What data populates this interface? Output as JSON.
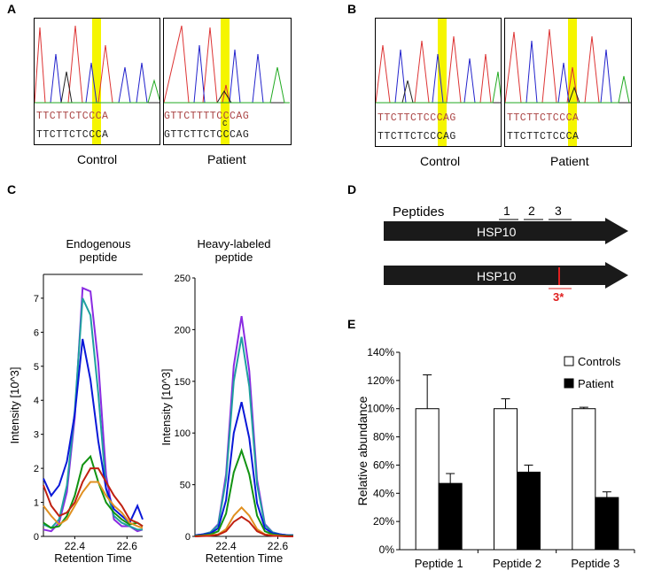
{
  "panels": {
    "A": {
      "letter": "A",
      "left": {
        "caption": "Control",
        "seq_top": "TTCTTCTCCCA",
        "seq_bottom": "TTCTTCTCCCA"
      },
      "right": {
        "caption": "Patient",
        "seq_top": "GTTCTTTTCCCAG",
        "seq_bottom": "GTTCTTCTCCCAG",
        "het_top": "T",
        "het_bottom": "C"
      }
    },
    "B": {
      "letter": "B",
      "left": {
        "caption": "Control",
        "seq_top": "TTCTTCTCCCAG",
        "seq_bottom": "TTCTTCTCCCAG"
      },
      "right": {
        "caption": "Patient",
        "seq_top": "TTCTTCTCCCA",
        "seq_bottom": "TTCTTCTCCCA",
        "het_top": "T"
      }
    },
    "C": {
      "letter": "C",
      "left_title_line1": "Endogenous",
      "left_title_line2": "peptide",
      "right_title_line1": "Heavy-labeled",
      "right_title_line2": "peptide",
      "ylabel": "Intensity [10^3]",
      "xlabel": "Retention Time"
    },
    "D": {
      "letter": "D",
      "peptides_label": "Peptides",
      "peptide_numbers": [
        "1",
        "2",
        "3"
      ],
      "arrow1_label": "HSP10",
      "arrow2_label": "HSP10",
      "mutation_label": "3*"
    },
    "E": {
      "letter": "E"
    }
  },
  "chart_data": [
    {
      "type": "line",
      "panel": "C-left",
      "title": "Endogenous peptide",
      "xlabel": "Retention Time",
      "ylabel": "Intensity [10^3]",
      "xlim": [
        22.28,
        22.66
      ],
      "ylim": [
        0,
        7.7
      ],
      "xticks": [
        "22.4",
        "22.6"
      ],
      "xtick_values": [
        22.4,
        22.6
      ],
      "yticks": [
        "0",
        "1",
        "2",
        "3",
        "4",
        "5",
        "6",
        "7"
      ],
      "x": [
        22.28,
        22.31,
        22.34,
        22.37,
        22.4,
        22.43,
        22.46,
        22.49,
        22.52,
        22.55,
        22.58,
        22.61,
        22.64,
        22.66
      ],
      "series": [
        {
          "name": "purple",
          "color": "#8a2be2",
          "values": [
            0.2,
            0.15,
            0.4,
            1.3,
            3.5,
            7.3,
            7.2,
            5.1,
            1.8,
            0.5,
            0.3,
            0.3,
            0.15,
            0.2
          ]
        },
        {
          "name": "teal",
          "color": "#20a0a0",
          "values": [
            0.35,
            0.25,
            0.5,
            1.5,
            3.7,
            7.0,
            6.5,
            4.2,
            1.4,
            0.6,
            0.4,
            0.3,
            0.2,
            0.2
          ]
        },
        {
          "name": "blue",
          "color": "#0a18d8",
          "values": [
            1.7,
            1.2,
            1.5,
            2.2,
            3.6,
            5.8,
            4.6,
            2.8,
            1.4,
            0.8,
            0.6,
            0.4,
            0.9,
            0.5
          ]
        },
        {
          "name": "green",
          "color": "#129312",
          "values": [
            0.4,
            0.25,
            0.3,
            0.6,
            1.2,
            2.1,
            2.35,
            1.6,
            1.0,
            0.7,
            0.5,
            0.35,
            0.4,
            0.3
          ]
        },
        {
          "name": "red",
          "color": "#c02010",
          "values": [
            1.5,
            0.9,
            0.6,
            0.7,
            1.0,
            1.6,
            2.0,
            2.0,
            1.6,
            1.2,
            0.9,
            0.5,
            0.4,
            0.3
          ]
        },
        {
          "name": "orange",
          "color": "#e09020",
          "values": [
            0.9,
            0.6,
            0.35,
            0.5,
            0.9,
            1.3,
            1.6,
            1.6,
            1.2,
            0.9,
            0.7,
            0.4,
            0.3,
            0.25
          ]
        }
      ]
    },
    {
      "type": "line",
      "panel": "C-right",
      "title": "Heavy-labeled peptide",
      "xlabel": "Retention Time",
      "ylabel": "Intensity [10^3]",
      "xlim": [
        22.28,
        22.66
      ],
      "ylim": [
        0,
        250
      ],
      "xticks": [
        "22.4",
        "22.6"
      ],
      "xtick_values": [
        22.4,
        22.6
      ],
      "yticks": [
        "0",
        "50",
        "100",
        "150",
        "200",
        "250"
      ],
      "x": [
        22.28,
        22.31,
        22.34,
        22.37,
        22.4,
        22.43,
        22.46,
        22.49,
        22.52,
        22.55,
        22.58,
        22.61,
        22.64,
        22.66
      ],
      "series": [
        {
          "name": "purple",
          "color": "#8a2be2",
          "values": [
            1,
            2,
            4,
            12,
            60,
            165,
            213,
            160,
            55,
            12,
            4,
            2,
            1,
            1
          ]
        },
        {
          "name": "teal",
          "color": "#20a0a0",
          "values": [
            1,
            2,
            4,
            11,
            55,
            150,
            193,
            145,
            50,
            11,
            4,
            2,
            1,
            1
          ]
        },
        {
          "name": "blue",
          "color": "#0a18d8",
          "values": [
            1,
            2,
            3,
            8,
            35,
            100,
            130,
            95,
            32,
            8,
            3,
            2,
            1,
            1
          ]
        },
        {
          "name": "green",
          "color": "#129312",
          "values": [
            0.5,
            1,
            2,
            5,
            22,
            62,
            83,
            60,
            20,
            5,
            2,
            1,
            0.5,
            0.5
          ]
        },
        {
          "name": "orange",
          "color": "#e09020",
          "values": [
            0,
            0.5,
            1,
            2,
            7,
            20,
            28,
            20,
            7,
            2,
            1,
            0.5,
            0,
            0
          ]
        },
        {
          "name": "red",
          "color": "#c02010",
          "values": [
            0,
            0.3,
            0.5,
            1.5,
            5,
            14,
            19,
            14,
            5,
            1.5,
            0.5,
            0.3,
            0,
            0
          ]
        }
      ]
    },
    {
      "type": "bar",
      "panel": "E",
      "title": "",
      "xlabel": "",
      "ylabel": "Relative abundance",
      "ylim": [
        0,
        140
      ],
      "yticks": [
        "0%",
        "20%",
        "40%",
        "60%",
        "80%",
        "100%",
        "120%",
        "140%"
      ],
      "categories": [
        "Peptide 1",
        "Peptide 2",
        "Peptide 3"
      ],
      "series": [
        {
          "name": "Controls",
          "color": "#ffffff",
          "values": [
            100,
            100,
            100
          ],
          "errors": [
            24,
            7,
            1
          ]
        },
        {
          "name": "Patient",
          "color": "#000000",
          "values": [
            47,
            55,
            37
          ],
          "errors": [
            7,
            5,
            4
          ]
        }
      ],
      "legend": "top-right"
    }
  ]
}
